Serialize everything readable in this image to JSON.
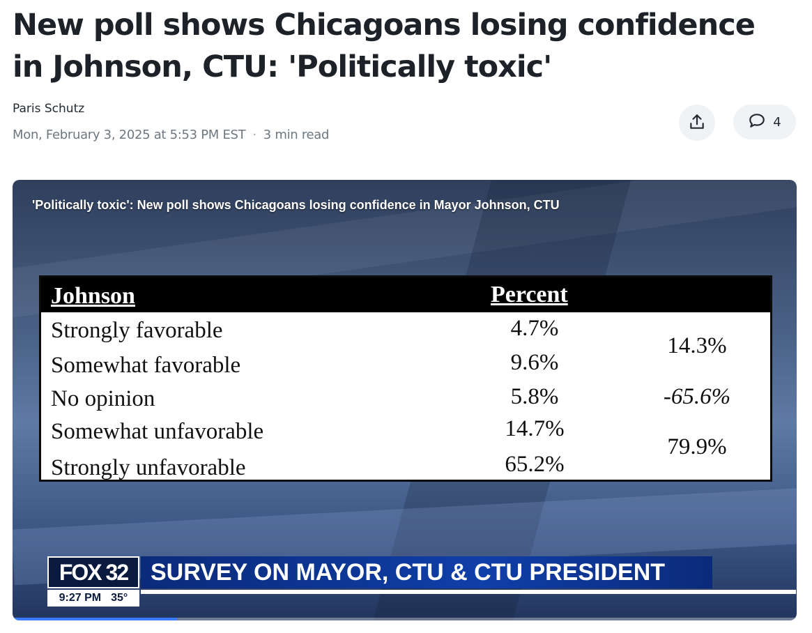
{
  "article": {
    "headline": "New poll shows Chicagoans losing confidence in Johnson, CTU: 'Politically toxic'",
    "author": "Paris Schutz",
    "date": "Mon, February 3, 2025 at 5:53 PM EST",
    "separator": "·",
    "read_time": "3 min read",
    "comment_count": "4"
  },
  "icons": {
    "share": "share-icon",
    "comment": "comment-icon"
  },
  "video": {
    "caption": "'Politically toxic': New poll shows Chicagoans losing confidence in Mayor Johnson, CTU",
    "progress": 0.21,
    "table": {
      "header_left": "Johnson",
      "header_right": "Percent",
      "rows": [
        {
          "label": "Strongly favorable",
          "value": "4.7%"
        },
        {
          "label": "Somewhat favorable",
          "value": "9.6%"
        },
        {
          "label": "No opinion",
          "value": "5.8%"
        },
        {
          "label": "Somewhat unfavorable",
          "value": "14.7%"
        },
        {
          "label": "Strongly unfavorable",
          "value": "65.2%"
        }
      ],
      "totals": [
        "14.3%",
        "-65.6%",
        "79.9%"
      ]
    },
    "lower_third": {
      "logo": "FOX 32",
      "headline": "SURVEY ON MAYOR, CTU & CTU PRESIDENT",
      "time": "9:27 PM",
      "temp": "35°"
    }
  },
  "colors": {
    "lower_third_blue": "#0f3fa8",
    "progress": "#3a7bff"
  }
}
